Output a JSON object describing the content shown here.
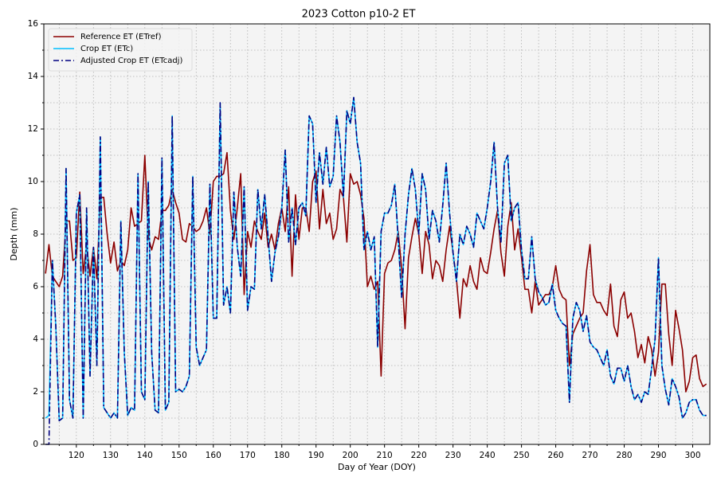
{
  "chart_data": {
    "type": "line",
    "title": "2023 Cotton p10-2 ET",
    "xlabel": "Day of Year (DOY)",
    "ylabel": "Depth (mm)",
    "x": [
      111,
      112,
      113,
      114,
      115,
      116,
      117,
      118,
      119,
      120,
      121,
      122,
      123,
      124,
      125,
      126,
      127,
      128,
      129,
      130,
      131,
      132,
      133,
      134,
      135,
      136,
      137,
      138,
      139,
      140,
      141,
      142,
      143,
      144,
      145,
      146,
      147,
      148,
      149,
      150,
      151,
      152,
      153,
      154,
      155,
      156,
      157,
      158,
      159,
      160,
      161,
      162,
      163,
      164,
      165,
      166,
      167,
      168,
      169,
      170,
      171,
      172,
      173,
      174,
      175,
      176,
      177,
      178,
      179,
      180,
      181,
      182,
      183,
      184,
      185,
      186,
      187,
      188,
      189,
      190,
      191,
      192,
      193,
      194,
      195,
      196,
      197,
      198,
      199,
      200,
      201,
      202,
      203,
      204,
      205,
      206,
      207,
      208,
      209,
      210,
      211,
      212,
      213,
      214,
      215,
      216,
      217,
      218,
      219,
      220,
      221,
      222,
      223,
      224,
      225,
      226,
      227,
      228,
      229,
      230,
      231,
      232,
      233,
      234,
      235,
      236,
      237,
      238,
      239,
      240,
      241,
      242,
      243,
      244,
      245,
      246,
      247,
      248,
      249,
      250,
      251,
      252,
      253,
      254,
      255,
      256,
      257,
      258,
      259,
      260,
      261,
      262,
      263,
      264,
      265,
      266,
      267,
      268,
      269,
      270,
      271,
      272,
      273,
      274,
      275,
      276,
      277,
      278,
      279,
      280,
      281,
      282,
      283,
      284,
      285,
      286,
      287,
      288,
      289,
      290,
      291,
      292,
      293,
      294,
      295,
      296,
      297,
      298,
      299,
      300,
      301,
      302,
      303,
      304
    ],
    "series": [
      {
        "name": "Reference ET (ETref)",
        "color": "#8b0000",
        "linestyle": "solid",
        "values": [
          6.5,
          7.6,
          6.4,
          6.2,
          6.0,
          6.4,
          8.5,
          8.5,
          7.0,
          7.1,
          9.6,
          6.5,
          7.6,
          6.4,
          7.5,
          6.3,
          9.4,
          9.4,
          8.0,
          6.9,
          7.7,
          6.6,
          7.0,
          6.8,
          7.4,
          9.0,
          8.3,
          8.4,
          8.5,
          11.0,
          7.9,
          7.4,
          7.9,
          7.8,
          8.9,
          8.9,
          9.1,
          9.7,
          9.2,
          8.8,
          7.8,
          7.7,
          8.4,
          8.3,
          8.1,
          8.2,
          8.5,
          9.0,
          8.0,
          10.0,
          10.2,
          10.2,
          10.3,
          11.1,
          8.9,
          7.8,
          9.0,
          10.3,
          5.7,
          8.1,
          7.5,
          8.5,
          8.1,
          7.8,
          8.8,
          7.5,
          8.0,
          7.4,
          8.4,
          9.0,
          8.1,
          9.8,
          6.4,
          9.5,
          7.8,
          9.0,
          9.0,
          8.1,
          10.0,
          10.4,
          8.2,
          9.7,
          8.4,
          8.8,
          7.8,
          8.2,
          9.7,
          9.4,
          7.7,
          10.3,
          9.9,
          10.0,
          9.5,
          8.6,
          6.0,
          6.4,
          5.9,
          6.2,
          2.6,
          6.5,
          6.9,
          7.0,
          7.4,
          8.1,
          6.7,
          4.4,
          7.1,
          7.9,
          8.6,
          8.0,
          6.5,
          8.1,
          7.6,
          6.3,
          7.0,
          6.8,
          6.2,
          7.4,
          8.3,
          7.3,
          6.3,
          4.8,
          6.3,
          6.0,
          6.8,
          6.2,
          5.9,
          7.1,
          6.6,
          6.5,
          7.3,
          8.2,
          8.9,
          7.3,
          6.4,
          8.3,
          9.2,
          7.4,
          8.2,
          7.1,
          5.9,
          5.9,
          5.0,
          6.2,
          5.3,
          5.5,
          5.7,
          5.7,
          6.0,
          6.8,
          5.9,
          5.6,
          5.5,
          3.0,
          4.2,
          4.5,
          4.8,
          5.0,
          6.6,
          7.6,
          5.7,
          5.4,
          5.4,
          5.1,
          4.9,
          6.1,
          4.5,
          4.1,
          5.5,
          5.8,
          4.8,
          5.0,
          4.3,
          3.3,
          3.8,
          3.1,
          4.1,
          3.6,
          2.6,
          3.5,
          6.1,
          6.1,
          4.2,
          3.0,
          5.1,
          4.4,
          3.6,
          2.0,
          2.4,
          3.3,
          3.4,
          2.5,
          2.2,
          2.3
        ]
      },
      {
        "name": "Crop ET (ETc)",
        "color": "#00bfff",
        "linestyle": "solid",
        "values": [
          1.0,
          1.1,
          7.0,
          4.5,
          0.9,
          1.0,
          10.5,
          1.7,
          1.0,
          8.8,
          9.5,
          1.0,
          9.0,
          2.6,
          7.5,
          3.0,
          11.7,
          1.4,
          1.2,
          1.0,
          1.2,
          1.0,
          8.5,
          3.5,
          1.1,
          1.4,
          1.3,
          10.3,
          2.0,
          1.7,
          10.0,
          3.5,
          1.3,
          1.2,
          10.9,
          1.3,
          1.6,
          12.5,
          2.0,
          2.1,
          2.0,
          2.2,
          2.6,
          10.2,
          3.7,
          3.0,
          3.3,
          3.6,
          9.9,
          4.8,
          4.8,
          13.0,
          5.3,
          6.0,
          5.0,
          9.6,
          7.5,
          6.4,
          9.8,
          5.1,
          6.0,
          5.9,
          9.7,
          8.2,
          9.5,
          7.9,
          6.2,
          7.3,
          7.9,
          9.0,
          11.2,
          7.7,
          9.0,
          7.6,
          9.0,
          9.2,
          8.7,
          12.5,
          12.2,
          9.2,
          11.1,
          9.9,
          11.3,
          9.8,
          10.2,
          12.5,
          11.5,
          9.4,
          12.7,
          12.2,
          13.2,
          11.5,
          10.7,
          7.4,
          8.1,
          7.4,
          7.9,
          3.7,
          8.1,
          8.8,
          8.8,
          9.1,
          9.9,
          7.8,
          5.6,
          8.0,
          9.5,
          10.5,
          9.7,
          8.0,
          10.3,
          9.7,
          7.8,
          8.9,
          8.5,
          7.7,
          9.1,
          10.7,
          8.8,
          7.3,
          6.2,
          8.0,
          7.6,
          8.3,
          8.0,
          7.5,
          8.8,
          8.5,
          8.2,
          9.0,
          10.0,
          11.5,
          9.0,
          7.7,
          10.7,
          11.0,
          8.5,
          9.0,
          9.2,
          7.4,
          6.3,
          6.3,
          7.9,
          6.3,
          5.8,
          5.6,
          5.3,
          5.4,
          6.1,
          5.1,
          4.8,
          4.6,
          4.5,
          1.6,
          4.8,
          5.4,
          5.1,
          4.3,
          4.9,
          3.9,
          3.7,
          3.6,
          3.3,
          3.0,
          3.6,
          2.6,
          2.3,
          2.9,
          2.9,
          2.4,
          3.0,
          2.2,
          1.7,
          1.9,
          1.6,
          2.0,
          1.9,
          2.9,
          4.0,
          7.1,
          3.0,
          2.1,
          1.5,
          2.5,
          2.2,
          1.8,
          1.0,
          1.2,
          1.6,
          1.7,
          1.7,
          1.3,
          1.1,
          1.1
        ]
      },
      {
        "name": "Adjusted Crop ET (ETcadj)",
        "color": "#000080",
        "linestyle": "dashdot",
        "values": [
          0.0,
          0.0,
          7.0,
          4.5,
          0.9,
          1.0,
          10.5,
          1.7,
          1.0,
          8.8,
          9.5,
          1.0,
          9.0,
          2.6,
          7.5,
          3.0,
          11.7,
          1.4,
          1.2,
          1.0,
          1.2,
          1.0,
          8.5,
          3.5,
          1.1,
          1.4,
          1.3,
          10.3,
          2.0,
          1.7,
          10.0,
          3.5,
          1.3,
          1.2,
          10.9,
          1.3,
          1.6,
          12.5,
          2.0,
          2.1,
          2.0,
          2.2,
          2.6,
          10.2,
          3.7,
          3.0,
          3.3,
          3.6,
          9.9,
          4.8,
          4.8,
          13.0,
          5.3,
          6.0,
          5.0,
          9.6,
          7.5,
          6.4,
          9.8,
          5.1,
          6.0,
          5.9,
          9.7,
          8.2,
          9.5,
          7.9,
          6.2,
          7.3,
          7.9,
          9.0,
          11.2,
          7.7,
          9.0,
          7.6,
          9.0,
          9.2,
          8.7,
          12.5,
          12.2,
          9.2,
          11.1,
          9.9,
          11.3,
          9.8,
          10.2,
          12.5,
          11.5,
          9.4,
          12.7,
          12.2,
          13.2,
          11.5,
          10.7,
          7.4,
          8.1,
          7.4,
          7.9,
          3.7,
          8.1,
          8.8,
          8.8,
          9.1,
          9.9,
          7.8,
          5.6,
          8.0,
          9.5,
          10.5,
          9.7,
          8.0,
          10.3,
          9.7,
          7.8,
          8.9,
          8.5,
          7.7,
          9.1,
          10.7,
          8.8,
          7.3,
          6.2,
          8.0,
          7.6,
          8.3,
          8.0,
          7.5,
          8.8,
          8.5,
          8.2,
          9.0,
          10.0,
          11.5,
          9.0,
          7.7,
          10.7,
          11.0,
          8.5,
          9.0,
          9.2,
          7.4,
          6.3,
          6.3,
          7.9,
          6.3,
          5.8,
          5.6,
          5.3,
          5.4,
          6.1,
          5.1,
          4.8,
          4.6,
          4.5,
          1.6,
          4.8,
          5.4,
          5.1,
          4.3,
          4.9,
          3.9,
          3.7,
          3.6,
          3.3,
          3.0,
          3.6,
          2.6,
          2.3,
          2.9,
          2.9,
          2.4,
          3.0,
          2.2,
          1.7,
          1.9,
          1.6,
          2.0,
          1.9,
          2.9,
          4.0,
          7.1,
          3.0,
          2.1,
          1.5,
          2.5,
          2.2,
          1.8,
          1.0,
          1.2,
          1.6,
          1.7,
          1.7,
          1.3,
          1.1,
          1.1
        ]
      }
    ],
    "xlim": [
      110.5,
      305
    ],
    "ylim": [
      0,
      16
    ],
    "xticks": [
      120,
      130,
      140,
      150,
      160,
      170,
      180,
      190,
      200,
      210,
      220,
      230,
      240,
      250,
      260,
      270,
      280,
      290,
      300
    ],
    "xminorticks": [
      115,
      125,
      135,
      145,
      155,
      165,
      175,
      185,
      195,
      205,
      215,
      225,
      235,
      245,
      255,
      265,
      275,
      285,
      295
    ],
    "yticks": [
      0,
      2,
      4,
      6,
      8,
      10,
      12,
      14,
      16
    ],
    "yminorticks": [
      1,
      3,
      5,
      7,
      9,
      11,
      13,
      15
    ],
    "grid": true,
    "legend": "upper left"
  }
}
